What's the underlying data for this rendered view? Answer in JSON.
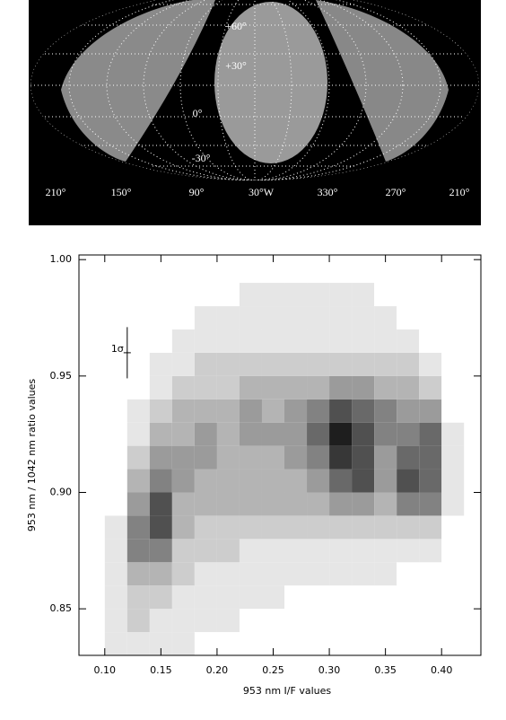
{
  "chart_data": [
    {
      "type": "map",
      "lat_labels": [
        "+60°",
        "+30°",
        "0°",
        "-30°"
      ],
      "lon_labels": [
        "210°",
        "150°",
        "90°",
        "30°W",
        "330°",
        "270°",
        "210°"
      ]
    },
    {
      "type": "density",
      "x_label": "953 nm I/F values",
      "y_label": "953 nm / 1042 nm ratio values",
      "xlim": [
        0.077,
        0.435
      ],
      "ylim": [
        0.83,
        1.002
      ],
      "xticks": [
        {
          "value": 0.1,
          "label": "0.10"
        },
        {
          "value": 0.15,
          "label": "0.15"
        },
        {
          "value": 0.2,
          "label": "0.20"
        },
        {
          "value": 0.25,
          "label": "0.25"
        },
        {
          "value": 0.3,
          "label": "0.30"
        },
        {
          "value": 0.35,
          "label": "0.35"
        },
        {
          "value": 0.4,
          "label": "0.40"
        }
      ],
      "yticks": [
        {
          "value": 0.85,
          "label": "0.85"
        },
        {
          "value": 0.9,
          "label": "0.90"
        },
        {
          "value": 0.95,
          "label": "0.95"
        },
        {
          "value": 1.0,
          "label": "1.00"
        }
      ],
      "xbins": [
        0.1,
        0.12,
        0.14,
        0.16,
        0.18,
        0.2,
        0.22,
        0.24,
        0.26,
        0.28,
        0.3,
        0.32,
        0.34,
        0.36,
        0.38,
        0.4,
        0.42
      ],
      "ybins": [
        0.83,
        0.84,
        0.85,
        0.86,
        0.87,
        0.88,
        0.89,
        0.9,
        0.91,
        0.92,
        0.93,
        0.94,
        0.95,
        0.96,
        0.97,
        0.98,
        0.99
      ],
      "zlim": [
        0,
        9
      ],
      "density": [
        [
          1,
          1,
          1,
          1,
          0,
          0,
          0,
          0,
          0,
          0,
          0,
          0,
          0,
          0,
          0,
          0
        ],
        [
          1,
          2,
          1,
          1,
          1,
          1,
          0,
          0,
          0,
          0,
          0,
          0,
          0,
          0,
          0,
          0
        ],
        [
          1,
          2,
          2,
          1,
          1,
          1,
          1,
          1,
          0,
          0,
          0,
          0,
          0,
          0,
          0,
          0
        ],
        [
          1,
          3,
          3,
          2,
          1,
          1,
          1,
          1,
          1,
          1,
          1,
          1,
          1,
          0,
          0,
          0
        ],
        [
          1,
          5,
          5,
          2,
          2,
          2,
          1,
          1,
          1,
          1,
          1,
          1,
          1,
          1,
          1,
          0
        ],
        [
          1,
          5,
          7,
          3,
          2,
          2,
          2,
          2,
          2,
          2,
          2,
          2,
          2,
          2,
          2,
          0
        ],
        [
          0,
          4,
          7,
          3,
          3,
          3,
          3,
          3,
          3,
          3,
          4,
          4,
          3,
          5,
          5,
          1
        ],
        [
          0,
          3,
          5,
          4,
          3,
          3,
          3,
          3,
          3,
          4,
          6,
          7,
          4,
          7,
          6,
          1
        ],
        [
          0,
          2,
          4,
          4,
          4,
          3,
          3,
          3,
          4,
          5,
          8,
          7,
          4,
          6,
          6,
          1
        ],
        [
          0,
          1,
          3,
          3,
          4,
          3,
          4,
          4,
          4,
          6,
          9,
          7,
          5,
          5,
          6,
          1
        ],
        [
          0,
          1,
          2,
          3,
          3,
          3,
          4,
          3,
          4,
          5,
          7,
          6,
          5,
          4,
          4,
          0
        ],
        [
          0,
          0,
          1,
          2,
          2,
          2,
          3,
          3,
          3,
          3,
          4,
          4,
          3,
          3,
          2,
          0
        ],
        [
          0,
          0,
          1,
          1,
          2,
          2,
          2,
          2,
          2,
          2,
          2,
          2,
          2,
          2,
          1,
          0
        ],
        [
          0,
          0,
          0,
          1,
          1,
          1,
          1,
          1,
          1,
          1,
          1,
          1,
          1,
          1,
          0,
          0
        ],
        [
          0,
          0,
          0,
          0,
          1,
          1,
          1,
          1,
          1,
          1,
          1,
          1,
          1,
          0,
          0,
          0
        ],
        [
          0,
          0,
          0,
          0,
          0,
          0,
          1,
          1,
          1,
          1,
          1,
          1,
          0,
          0,
          0,
          0
        ]
      ],
      "error_bar": {
        "label": "1σ",
        "x": 0.12,
        "y": 0.96,
        "error": 0.011
      }
    }
  ]
}
